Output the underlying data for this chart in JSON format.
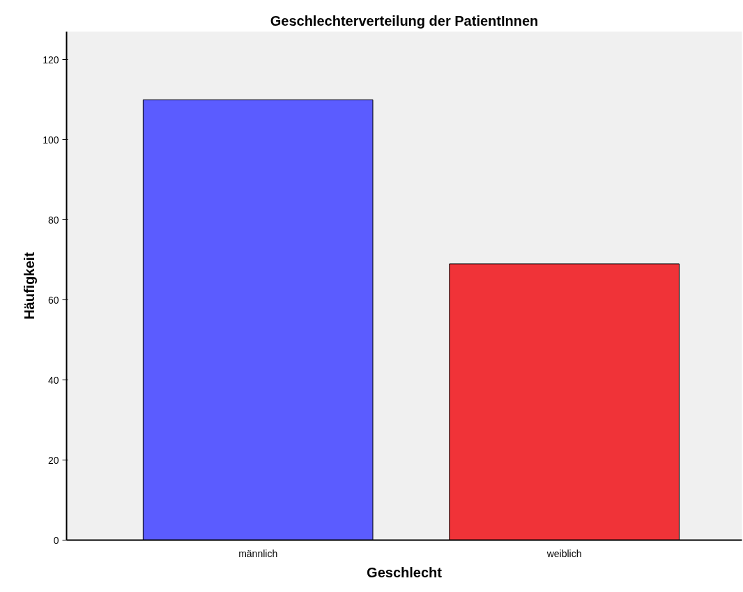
{
  "chart_data": {
    "type": "bar",
    "title": "Geschlechterverteilung der PatientInnen",
    "xlabel": "Geschlecht",
    "ylabel": "Häufigkeit",
    "categories": [
      "männlich",
      "weiblich"
    ],
    "values": [
      110,
      69
    ],
    "colors": [
      "#5b5cff",
      "#f03338"
    ],
    "ylim": [
      0,
      127
    ],
    "yticks": [
      0,
      20,
      40,
      60,
      80,
      100,
      120
    ],
    "grid": false
  }
}
